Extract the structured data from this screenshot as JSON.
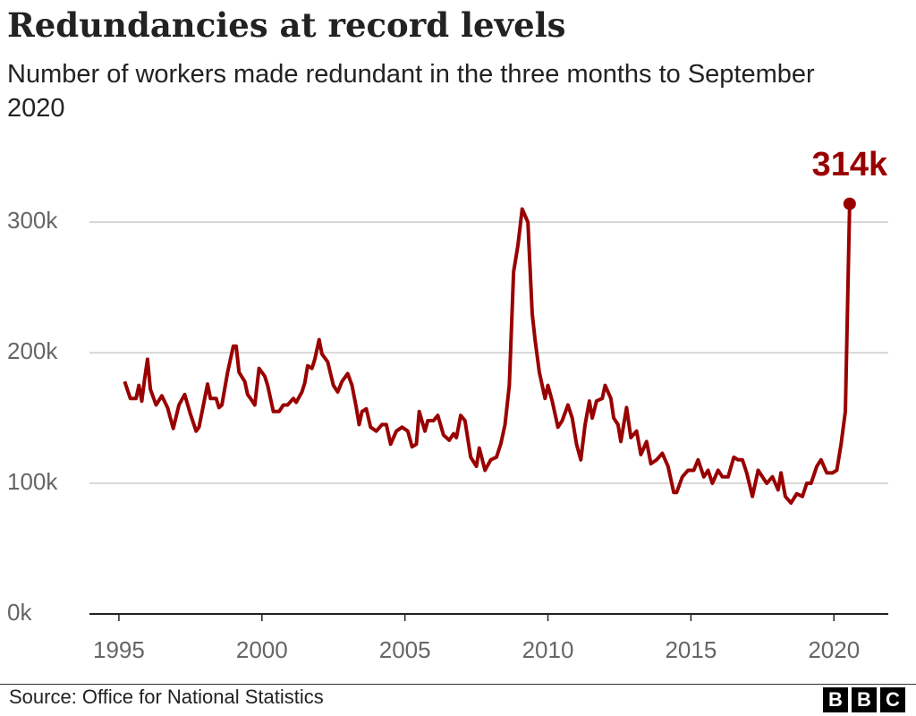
{
  "chart_data": {
    "type": "line",
    "title": "Redundancies at record levels",
    "subtitle": "Number of workers made redundant in the three months to September 2020",
    "source": "Source: Office for National Statistics",
    "logo": [
      "B",
      "B",
      "C"
    ],
    "color": "#990000",
    "grid": true,
    "x": [
      1995.2,
      1995.4,
      1995.6,
      1995.7,
      1995.8,
      1995.9,
      1996.0,
      1996.1,
      1996.3,
      1996.5,
      1996.7,
      1996.9,
      1997.1,
      1997.3,
      1997.5,
      1997.7,
      1997.8,
      1998.0,
      1998.1,
      1998.2,
      1998.4,
      1998.5,
      1998.6,
      1998.8,
      1999.0,
      1999.1,
      1999.2,
      1999.4,
      1999.5,
      1999.6,
      1999.75,
      1999.9,
      2000.1,
      2000.2,
      2000.4,
      2000.6,
      2000.75,
      2000.9,
      2001.1,
      2001.2,
      2001.4,
      2001.5,
      2001.6,
      2001.75,
      2001.85,
      2002.0,
      2002.1,
      2002.3,
      2002.5,
      2002.65,
      2002.8,
      2003.0,
      2003.15,
      2003.3,
      2003.4,
      2003.5,
      2003.65,
      2003.8,
      2004.0,
      2004.2,
      2004.35,
      2004.5,
      2004.7,
      2004.9,
      2005.1,
      2005.25,
      2005.4,
      2005.5,
      2005.7,
      2005.8,
      2006.0,
      2006.15,
      2006.35,
      2006.55,
      2006.7,
      2006.8,
      2006.95,
      2007.1,
      2007.3,
      2007.5,
      2007.6,
      2007.8,
      2008.0,
      2008.2,
      2008.35,
      2008.5,
      2008.65,
      2008.8,
      2008.95,
      2009.1,
      2009.3,
      2009.45,
      2009.55,
      2009.7,
      2009.9,
      2010.0,
      2010.15,
      2010.35,
      2010.5,
      2010.7,
      2010.85,
      2011.0,
      2011.15,
      2011.3,
      2011.45,
      2011.55,
      2011.7,
      2011.9,
      2012.0,
      2012.2,
      2012.3,
      2012.45,
      2012.55,
      2012.75,
      2012.9,
      2013.1,
      2013.25,
      2013.45,
      2013.6,
      2013.8,
      2014.0,
      2014.2,
      2014.4,
      2014.5,
      2014.7,
      2014.9,
      2015.1,
      2015.25,
      2015.45,
      2015.6,
      2015.75,
      2015.95,
      2016.1,
      2016.3,
      2016.5,
      2016.65,
      2016.8,
      2016.95,
      2017.15,
      2017.35,
      2017.5,
      2017.65,
      2017.85,
      2018.05,
      2018.15,
      2018.3,
      2018.5,
      2018.7,
      2018.9,
      2019.05,
      2019.2,
      2019.4,
      2019.55,
      2019.75,
      2019.95,
      2020.1,
      2020.25,
      2020.4,
      2020.55
    ],
    "values": [
      178000,
      165000,
      165000,
      175000,
      163000,
      180000,
      195000,
      172000,
      160000,
      167000,
      158000,
      142000,
      160000,
      168000,
      153000,
      140000,
      143000,
      165000,
      176000,
      165000,
      165000,
      158000,
      160000,
      185000,
      205000,
      205000,
      185000,
      178000,
      168000,
      165000,
      160000,
      188000,
      182000,
      175000,
      155000,
      155000,
      160000,
      160000,
      165000,
      162000,
      170000,
      177000,
      190000,
      188000,
      195000,
      210000,
      199000,
      193000,
      175000,
      170000,
      178000,
      184000,
      175000,
      158000,
      145000,
      155000,
      157000,
      143000,
      140000,
      145000,
      145000,
      130000,
      140000,
      143000,
      140000,
      128000,
      130000,
      155000,
      140000,
      148000,
      148000,
      152000,
      137000,
      133000,
      138000,
      135000,
      152000,
      148000,
      120000,
      113000,
      127000,
      110000,
      118000,
      120000,
      130000,
      145000,
      175000,
      262000,
      282000,
      310000,
      300000,
      230000,
      210000,
      185000,
      165000,
      175000,
      163000,
      143000,
      148000,
      160000,
      150000,
      130000,
      118000,
      145000,
      163000,
      150000,
      163000,
      165000,
      175000,
      165000,
      150000,
      145000,
      132000,
      158000,
      135000,
      140000,
      122000,
      132000,
      115000,
      118000,
      123000,
      113000,
      93000,
      93000,
      105000,
      110000,
      110000,
      118000,
      105000,
      110000,
      100000,
      110000,
      105000,
      105000,
      120000,
      118000,
      118000,
      108000,
      90000,
      110000,
      105000,
      100000,
      105000,
      95000,
      108000,
      90000,
      85000,
      92000,
      90000,
      100000,
      100000,
      113000,
      118000,
      108000,
      108000,
      110000,
      130000,
      155000,
      314000
    ],
    "annotations": [
      {
        "text": "314k",
        "x": 2020.55,
        "y": 314000
      }
    ],
    "xlim": [
      1993.97,
      2021.9
    ],
    "xticks": [
      1995,
      2000,
      2005,
      2010,
      2015,
      2020
    ],
    "ylim": [
      0,
      333000
    ],
    "yticks": [
      {
        "value": 0,
        "label": "0k"
      },
      {
        "value": 100000,
        "label": "100k"
      },
      {
        "value": 200000,
        "label": "200k"
      },
      {
        "value": 300000,
        "label": "300k"
      }
    ]
  }
}
